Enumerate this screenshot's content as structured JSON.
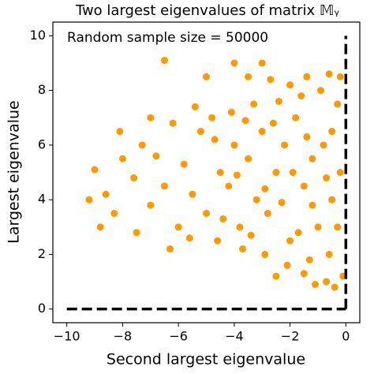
{
  "chart_data": {
    "type": "scatter",
    "title": "Two largest eigenvalues of matrix 𝕄ᵧ",
    "annotation": "Random sample size = 50000",
    "x_label": "Second largest eigenvalue",
    "y_label": "Largest eigenvalue",
    "xlim": [
      -10.5,
      0.5
    ],
    "ylim": [
      -0.5,
      10.5
    ],
    "xticks": [
      {
        "value": -10,
        "label": "−10"
      },
      {
        "value": -8,
        "label": "−8"
      },
      {
        "value": -6,
        "label": "−6"
      },
      {
        "value": -4,
        "label": "−4"
      },
      {
        "value": -2,
        "label": "−2"
      },
      {
        "value": 0,
        "label": "0"
      }
    ],
    "yticks": [
      0,
      2,
      4,
      6,
      8,
      10
    ],
    "series": [
      {
        "color": "#ff9900",
        "x": [
          -0.2,
          -0.5,
          -0.8,
          -1,
          -1.2,
          -1.5,
          -1.8,
          -2,
          -2.2,
          -2.5,
          -2.8,
          -3,
          -3.2,
          -3.5,
          -3.8,
          -4,
          -4.2,
          -4.5,
          -4.8,
          -5,
          -0.3,
          -0.6,
          -0.9,
          -1.3,
          -1.6,
          -2.1,
          -2.4,
          -2.9,
          -3.3,
          -3.7,
          -4.1,
          -4.6,
          -5.2,
          -5.5,
          -5.8,
          -6,
          -6.2,
          -6.5,
          -6.8,
          -7,
          -7.3,
          -7.6,
          -8,
          -8.3,
          -8.6,
          -9,
          -8.8,
          -0.1,
          -0.4,
          -0.7,
          -1.1,
          -1.5,
          -2.5,
          -0.2,
          -0.6,
          -1.4,
          -2,
          -2.7,
          -3.5,
          -5,
          -6.5,
          -4,
          -3,
          -0.3,
          -0.5,
          -0.7,
          -1.2,
          -1.4,
          -1.7,
          -1.9,
          -2.3,
          -2.6,
          -2.9,
          -3.4,
          -3.6,
          -3.9,
          -4.4,
          -4.7,
          -5.4,
          -5.6,
          -6.3,
          -7,
          -7.5,
          -8.1,
          -9.2
        ],
        "values": [
          5,
          4,
          6,
          3,
          5.5,
          4.5,
          7,
          2.5,
          6,
          5,
          3.5,
          6.5,
          4,
          5.5,
          3,
          6,
          4.5,
          5,
          7,
          3.5,
          7.5,
          2,
          8,
          1.8,
          7.8,
          1.6,
          7.6,
          2,
          7.5,
          2.2,
          7.2,
          2.5,
          6.5,
          4.2,
          5.3,
          3,
          6.8,
          4.5,
          5.6,
          3.8,
          6,
          4.8,
          5.5,
          3.5,
          4.2,
          5.1,
          3,
          1.2,
          0.8,
          1,
          0.9,
          1.3,
          1.2,
          8.5,
          8.6,
          8.5,
          8.2,
          8.4,
          8.5,
          8.5,
          9.1,
          9,
          9,
          3,
          6.5,
          4.8,
          3.8,
          6.3,
          2.8,
          5,
          3.9,
          6.8,
          4.4,
          2.7,
          6.9,
          4.9,
          3.3,
          6.2,
          7.4,
          2.6,
          2.2,
          7,
          2.8,
          6.5,
          4
        ]
      }
    ],
    "lines": [
      {
        "color": "#000000",
        "x": [
          -10,
          0
        ],
        "y": [
          0,
          0
        ]
      },
      {
        "color": "#000000",
        "x": [
          0,
          0
        ],
        "y": [
          0,
          10
        ]
      }
    ]
  }
}
